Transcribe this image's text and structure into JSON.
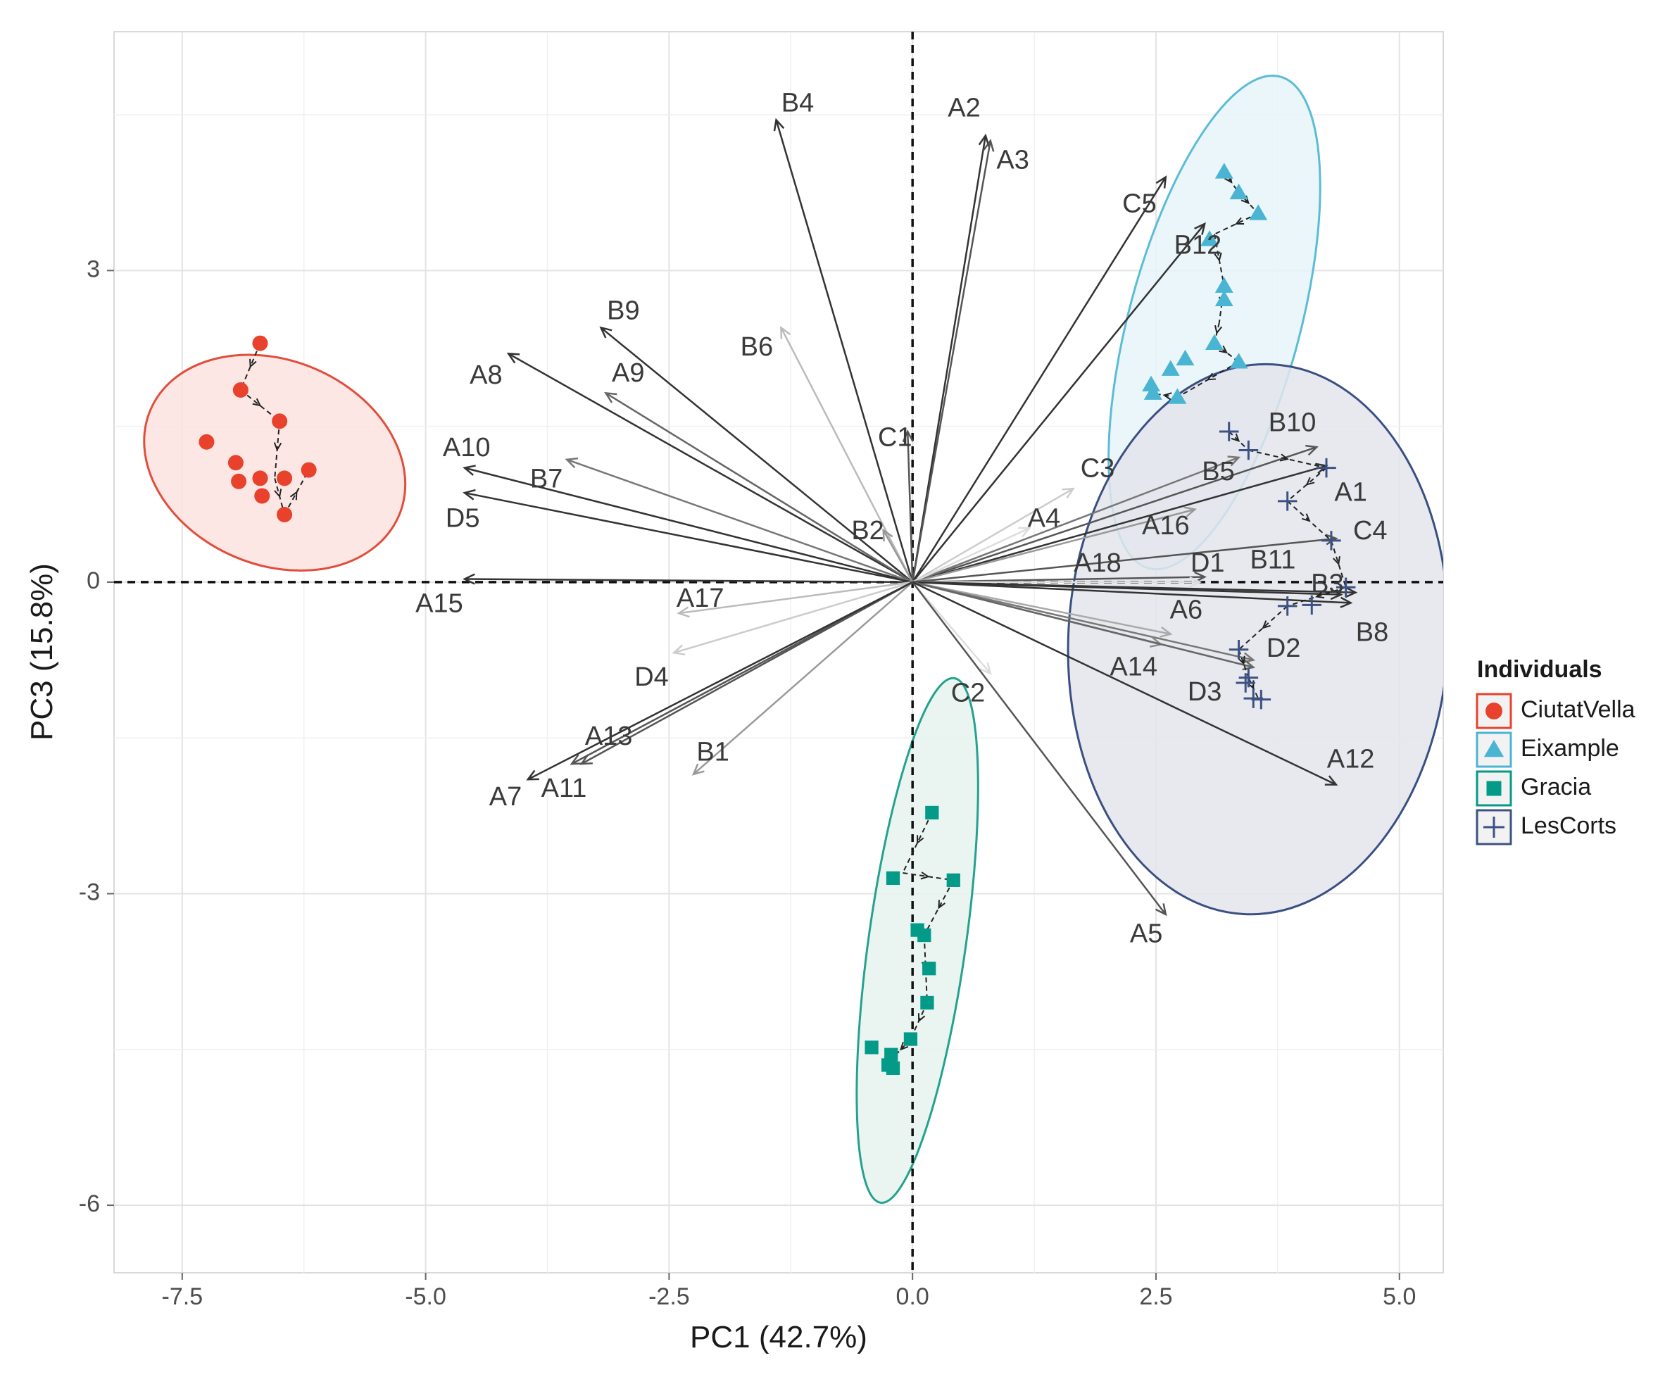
{
  "chart_data": {
    "type": "scatter",
    "subtype": "pca-biplot",
    "xlabel": "PC1 (42.7%)",
    "ylabel": "PC3 (15.8%)",
    "xlim": [
      -8.2,
      5.45
    ],
    "ylim": [
      -6.65,
      5.3
    ],
    "xticks": [
      -7.5,
      -5.0,
      -2.5,
      0.0,
      2.5,
      5.0
    ],
    "xtick_labels": [
      "-7.5",
      "-5.0",
      "-2.5",
      "0.0",
      "2.5",
      "5.0"
    ],
    "yticks": [
      3,
      0,
      -3,
      -6
    ],
    "ytick_labels": [
      "3",
      "0",
      "-3",
      "-6"
    ],
    "grid": true,
    "reference_lines": {
      "x": 0,
      "y": 0,
      "style": "dashed"
    },
    "legend": {
      "title": "Individuals",
      "position": "right",
      "entries": [
        {
          "name": "CiutatVella",
          "marker": "circle",
          "color": "#e8412c"
        },
        {
          "name": "Eixample",
          "marker": "triangle",
          "color": "#4ab5d3"
        },
        {
          "name": "Gracia",
          "marker": "square",
          "color": "#039a87"
        },
        {
          "name": "LesCorts",
          "marker": "plus",
          "color": "#3d5283"
        }
      ]
    },
    "series": [
      {
        "name": "CiutatVella",
        "ellipse": {
          "cx": -6.55,
          "cy": 1.15,
          "rx": 1.05,
          "ry": 1.3,
          "angle_deg": -67,
          "fill": "#fbe3e0",
          "stroke": "#e24d3b"
        },
        "points": [
          [
            -6.7,
            2.3
          ],
          [
            -6.9,
            1.85
          ],
          [
            -6.5,
            1.55
          ],
          [
            -7.25,
            1.35
          ],
          [
            -6.95,
            1.15
          ],
          [
            -6.7,
            1.0
          ],
          [
            -6.45,
            1.0
          ],
          [
            -6.92,
            0.97
          ],
          [
            -6.2,
            1.08
          ],
          [
            -6.68,
            0.83
          ],
          [
            -6.45,
            0.65
          ]
        ],
        "trajectory": [
          [
            -6.7,
            2.3
          ],
          [
            -6.9,
            1.85
          ],
          [
            -6.5,
            1.55
          ],
          [
            -6.55,
            1.0
          ],
          [
            -6.45,
            0.65
          ],
          [
            -6.2,
            1.08
          ]
        ]
      },
      {
        "name": "Eixample",
        "ellipse": {
          "cx": 3.1,
          "cy": 2.5,
          "rx": 0.88,
          "ry": 2.45,
          "angle_deg": 15,
          "fill": "#e6f4f8",
          "stroke": "#5bbcd7"
        },
        "points": [
          [
            3.2,
            3.95
          ],
          [
            3.35,
            3.75
          ],
          [
            3.55,
            3.55
          ],
          [
            3.05,
            3.3
          ],
          [
            3.2,
            2.85
          ],
          [
            3.2,
            2.72
          ],
          [
            3.1,
            2.3
          ],
          [
            2.8,
            2.15
          ],
          [
            3.35,
            2.12
          ],
          [
            2.65,
            2.05
          ],
          [
            2.45,
            1.9
          ],
          [
            2.47,
            1.82
          ],
          [
            2.72,
            1.78
          ]
        ],
        "trajectory": [
          [
            3.2,
            3.95
          ],
          [
            3.35,
            3.75
          ],
          [
            3.55,
            3.55
          ],
          [
            3.1,
            3.35
          ],
          [
            3.2,
            2.85
          ],
          [
            3.15,
            2.5
          ],
          [
            3.1,
            2.3
          ],
          [
            3.35,
            2.12
          ],
          [
            2.72,
            1.78
          ],
          [
            2.45,
            1.82
          ]
        ]
      },
      {
        "name": "Gracia",
        "ellipse": {
          "cx": 0.05,
          "cy": -3.45,
          "rx": 0.5,
          "ry": 2.55,
          "angle_deg": 8,
          "fill": "#e6f2ef",
          "stroke": "#23a28e"
        },
        "points": [
          [
            0.2,
            -2.22
          ],
          [
            -0.2,
            -2.85
          ],
          [
            0.42,
            -2.87
          ],
          [
            0.05,
            -3.35
          ],
          [
            0.12,
            -3.4
          ],
          [
            0.17,
            -3.72
          ],
          [
            0.15,
            -4.05
          ],
          [
            -0.02,
            -4.4
          ],
          [
            -0.42,
            -4.48
          ],
          [
            -0.22,
            -4.55
          ],
          [
            -0.25,
            -4.65
          ],
          [
            -0.2,
            -4.68
          ]
        ],
        "trajectory": [
          [
            0.2,
            -2.22
          ],
          [
            -0.1,
            -2.8
          ],
          [
            0.42,
            -2.87
          ],
          [
            0.12,
            -3.4
          ],
          [
            0.15,
            -4.05
          ],
          [
            -0.02,
            -4.4
          ],
          [
            -0.22,
            -4.6
          ]
        ]
      },
      {
        "name": "LesCorts",
        "ellipse": {
          "cx": 3.55,
          "cy": -0.55,
          "rx": 1.95,
          "ry": 2.65,
          "angle_deg": 3,
          "fill": "#e3e5ec",
          "stroke": "#3a4f82"
        },
        "points": [
          [
            3.25,
            1.45
          ],
          [
            3.45,
            1.27
          ],
          [
            4.25,
            1.1
          ],
          [
            3.85,
            0.78
          ],
          [
            4.3,
            0.4
          ],
          [
            4.45,
            -0.05
          ],
          [
            3.85,
            -0.23
          ],
          [
            4.1,
            -0.22
          ],
          [
            3.35,
            -0.65
          ],
          [
            3.45,
            -0.92
          ],
          [
            3.42,
            -0.97
          ],
          [
            3.5,
            -1.12
          ],
          [
            3.58,
            -1.13
          ]
        ],
        "trajectory": [
          [
            3.25,
            1.45
          ],
          [
            3.45,
            1.27
          ],
          [
            4.25,
            1.1
          ],
          [
            3.85,
            0.78
          ],
          [
            4.3,
            0.4
          ],
          [
            4.45,
            -0.05
          ],
          [
            3.85,
            -0.23
          ],
          [
            3.35,
            -0.65
          ],
          [
            3.45,
            -0.92
          ],
          [
            3.55,
            -1.12
          ]
        ]
      }
    ],
    "variables": [
      {
        "name": "B4",
        "x": -1.4,
        "y": 4.45,
        "tone": "#333333",
        "lx": -1.18,
        "ly": 4.6
      },
      {
        "name": "A2",
        "x": 0.75,
        "y": 4.3,
        "tone": "#333333",
        "lx": 0.53,
        "ly": 4.55
      },
      {
        "name": "A3",
        "x": 0.8,
        "y": 4.25,
        "tone": "#555555",
        "lx": 1.03,
        "ly": 4.05
      },
      {
        "name": "C5",
        "x": 2.6,
        "y": 3.9,
        "tone": "#333333",
        "lx": 2.33,
        "ly": 3.63
      },
      {
        "name": "B12",
        "x": 3.0,
        "y": 3.45,
        "tone": "#333333",
        "lx": 2.93,
        "ly": 3.23
      },
      {
        "name": "B9",
        "x": -3.2,
        "y": 2.45,
        "tone": "#333333",
        "lx": -2.97,
        "ly": 2.6
      },
      {
        "name": "B6",
        "x": -1.35,
        "y": 2.45,
        "tone": "#bbbbbb",
        "lx": -1.6,
        "ly": 2.25
      },
      {
        "name": "A8",
        "x": -4.15,
        "y": 2.2,
        "tone": "#333333",
        "lx": -4.38,
        "ly": 1.98
      },
      {
        "name": "A9",
        "x": -3.15,
        "y": 1.82,
        "tone": "#666666",
        "lx": -2.92,
        "ly": 2.0
      },
      {
        "name": "C1",
        "x": -0.05,
        "y": 1.45,
        "tone": "#555555",
        "lx": -0.18,
        "ly": 1.38
      },
      {
        "name": "A10",
        "x": -4.6,
        "y": 1.1,
        "tone": "#333333",
        "lx": -4.58,
        "ly": 1.28
      },
      {
        "name": "B7",
        "x": -3.55,
        "y": 1.18,
        "tone": "#777777",
        "lx": -3.76,
        "ly": 0.98
      },
      {
        "name": "D5",
        "x": -4.6,
        "y": 0.86,
        "tone": "#333333",
        "lx": -4.62,
        "ly": 0.6
      },
      {
        "name": "B2",
        "x": -0.3,
        "y": 0.5,
        "tone": "#999999",
        "lx": -0.46,
        "ly": 0.48
      },
      {
        "name": "A15",
        "x": -4.6,
        "y": 0.03,
        "tone": "#333333",
        "lx": -4.86,
        "ly": -0.22
      },
      {
        "name": "A17",
        "x": -2.4,
        "y": -0.3,
        "tone": "#bbbbbb",
        "lx": -2.18,
        "ly": -0.17
      },
      {
        "name": "D4",
        "x": -2.45,
        "y": -0.68,
        "tone": "#cccccc",
        "lx": -2.68,
        "ly": -0.93
      },
      {
        "name": "A13",
        "x": -3.4,
        "y": -1.75,
        "tone": "#555555",
        "lx": -3.12,
        "ly": -1.5
      },
      {
        "name": "B1",
        "x": -2.25,
        "y": -1.85,
        "tone": "#999999",
        "lx": -2.05,
        "ly": -1.65
      },
      {
        "name": "A11",
        "x": -3.5,
        "y": -1.75,
        "tone": "#555555",
        "lx": -3.58,
        "ly": -2.0
      },
      {
        "name": "A7",
        "x": -3.95,
        "y": -1.9,
        "tone": "#333333",
        "lx": -4.18,
        "ly": -2.08
      },
      {
        "name": "C2",
        "x": 0.8,
        "y": -0.88,
        "tone": "#dddddd",
        "lx": 0.57,
        "ly": -1.08
      },
      {
        "name": "A5",
        "x": 2.6,
        "y": -3.2,
        "tone": "#555555",
        "lx": 2.4,
        "ly": -3.4
      },
      {
        "name": "B10",
        "x": 4.15,
        "y": 1.3,
        "tone": "#555555",
        "lx": 3.9,
        "ly": 1.52
      },
      {
        "name": "C3",
        "x": 1.65,
        "y": 0.9,
        "tone": "#cccccc",
        "lx": 1.9,
        "ly": 1.08
      },
      {
        "name": "B5",
        "x": 3.35,
        "y": 1.2,
        "tone": "#777777",
        "lx": 3.14,
        "ly": 1.05
      },
      {
        "name": "A1",
        "x": 4.25,
        "y": 1.12,
        "tone": "#333333",
        "lx": 4.5,
        "ly": 0.85
      },
      {
        "name": "A4",
        "x": 1.2,
        "y": 0.52,
        "tone": "#dddddd",
        "lx": 1.35,
        "ly": 0.6
      },
      {
        "name": "A16",
        "x": 2.9,
        "y": 0.7,
        "tone": "#999999",
        "lx": 2.6,
        "ly": 0.53
      },
      {
        "name": "C4",
        "x": 4.35,
        "y": 0.42,
        "tone": "#555555",
        "lx": 4.7,
        "ly": 0.48
      },
      {
        "name": "A18",
        "x": 3.0,
        "y": 0.05,
        "tone": "#555555",
        "lx": 1.9,
        "ly": 0.17
      },
      {
        "name": "D1",
        "x": 2.95,
        "y": 0.0,
        "tone": "#dddddd",
        "lx": 3.03,
        "ly": 0.17
      },
      {
        "name": "B11",
        "x": 4.4,
        "y": -0.12,
        "tone": "#333333",
        "lx": 3.7,
        "ly": 0.2
      },
      {
        "name": "B3",
        "x": 4.55,
        "y": -0.1,
        "tone": "#333333",
        "lx": 4.26,
        "ly": -0.03
      },
      {
        "name": "A6",
        "x": 2.65,
        "y": -0.5,
        "tone": "#aaaaaa",
        "lx": 2.81,
        "ly": -0.28
      },
      {
        "name": "B8",
        "x": 4.5,
        "y": -0.2,
        "tone": "#333333",
        "lx": 4.72,
        "ly": -0.5
      },
      {
        "name": "D2",
        "x": 3.5,
        "y": -0.75,
        "tone": "#777777",
        "lx": 3.81,
        "ly": -0.65
      },
      {
        "name": "A14",
        "x": 2.55,
        "y": -0.6,
        "tone": "#888888",
        "lx": 2.27,
        "ly": -0.83
      },
      {
        "name": "D3",
        "x": 3.5,
        "y": -0.82,
        "tone": "#666666",
        "lx": 3.0,
        "ly": -1.07
      },
      {
        "name": "A12",
        "x": 4.35,
        "y": -1.95,
        "tone": "#333333",
        "lx": 4.5,
        "ly": -1.72
      }
    ]
  }
}
